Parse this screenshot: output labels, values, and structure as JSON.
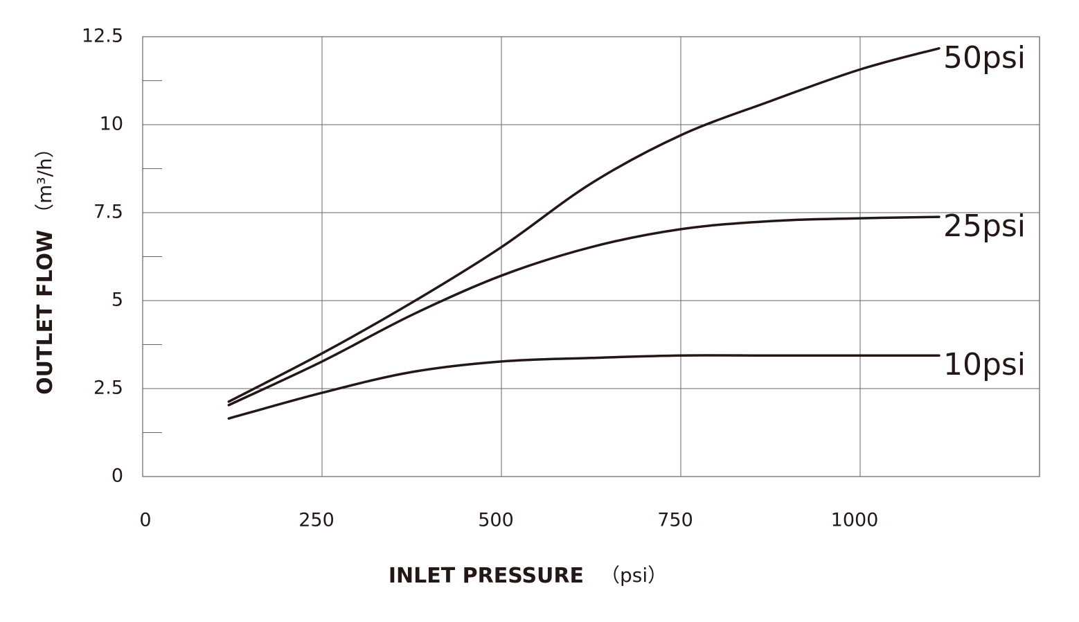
{
  "chart_data": {
    "type": "line",
    "x_label": "INLET PRESSURE",
    "x_unit": "（psi）",
    "y_label": "OUTLET FLOW",
    "y_unit": "（m³/h）",
    "x": [
      120,
      250,
      375,
      500,
      625,
      750,
      875,
      1000,
      1110
    ],
    "series": [
      {
        "name": "50psi",
        "color": "#231815",
        "values": [
          2.13,
          3.5,
          4.94,
          6.52,
          8.33,
          9.7,
          10.67,
          11.57,
          12.17
        ]
      },
      {
        "name": "25psi",
        "color": "#231815",
        "values": [
          2.03,
          3.27,
          4.59,
          5.71,
          6.52,
          7.03,
          7.26,
          7.34,
          7.38
        ]
      },
      {
        "name": "10psi",
        "color": "#231815",
        "values": [
          1.65,
          2.38,
          2.97,
          3.27,
          3.37,
          3.44,
          3.44,
          3.44,
          3.44
        ]
      }
    ],
    "xlim": [
      0,
      1250
    ],
    "xticks": [
      0,
      250,
      500,
      750,
      1000
    ],
    "ylim": [
      0,
      12.5
    ],
    "yticks": [
      0,
      2.5,
      5,
      7.5,
      10,
      12.5
    ],
    "yminorticks": [
      1.25,
      3.75,
      6.25,
      8.75,
      11.25
    ],
    "grid": true
  }
}
